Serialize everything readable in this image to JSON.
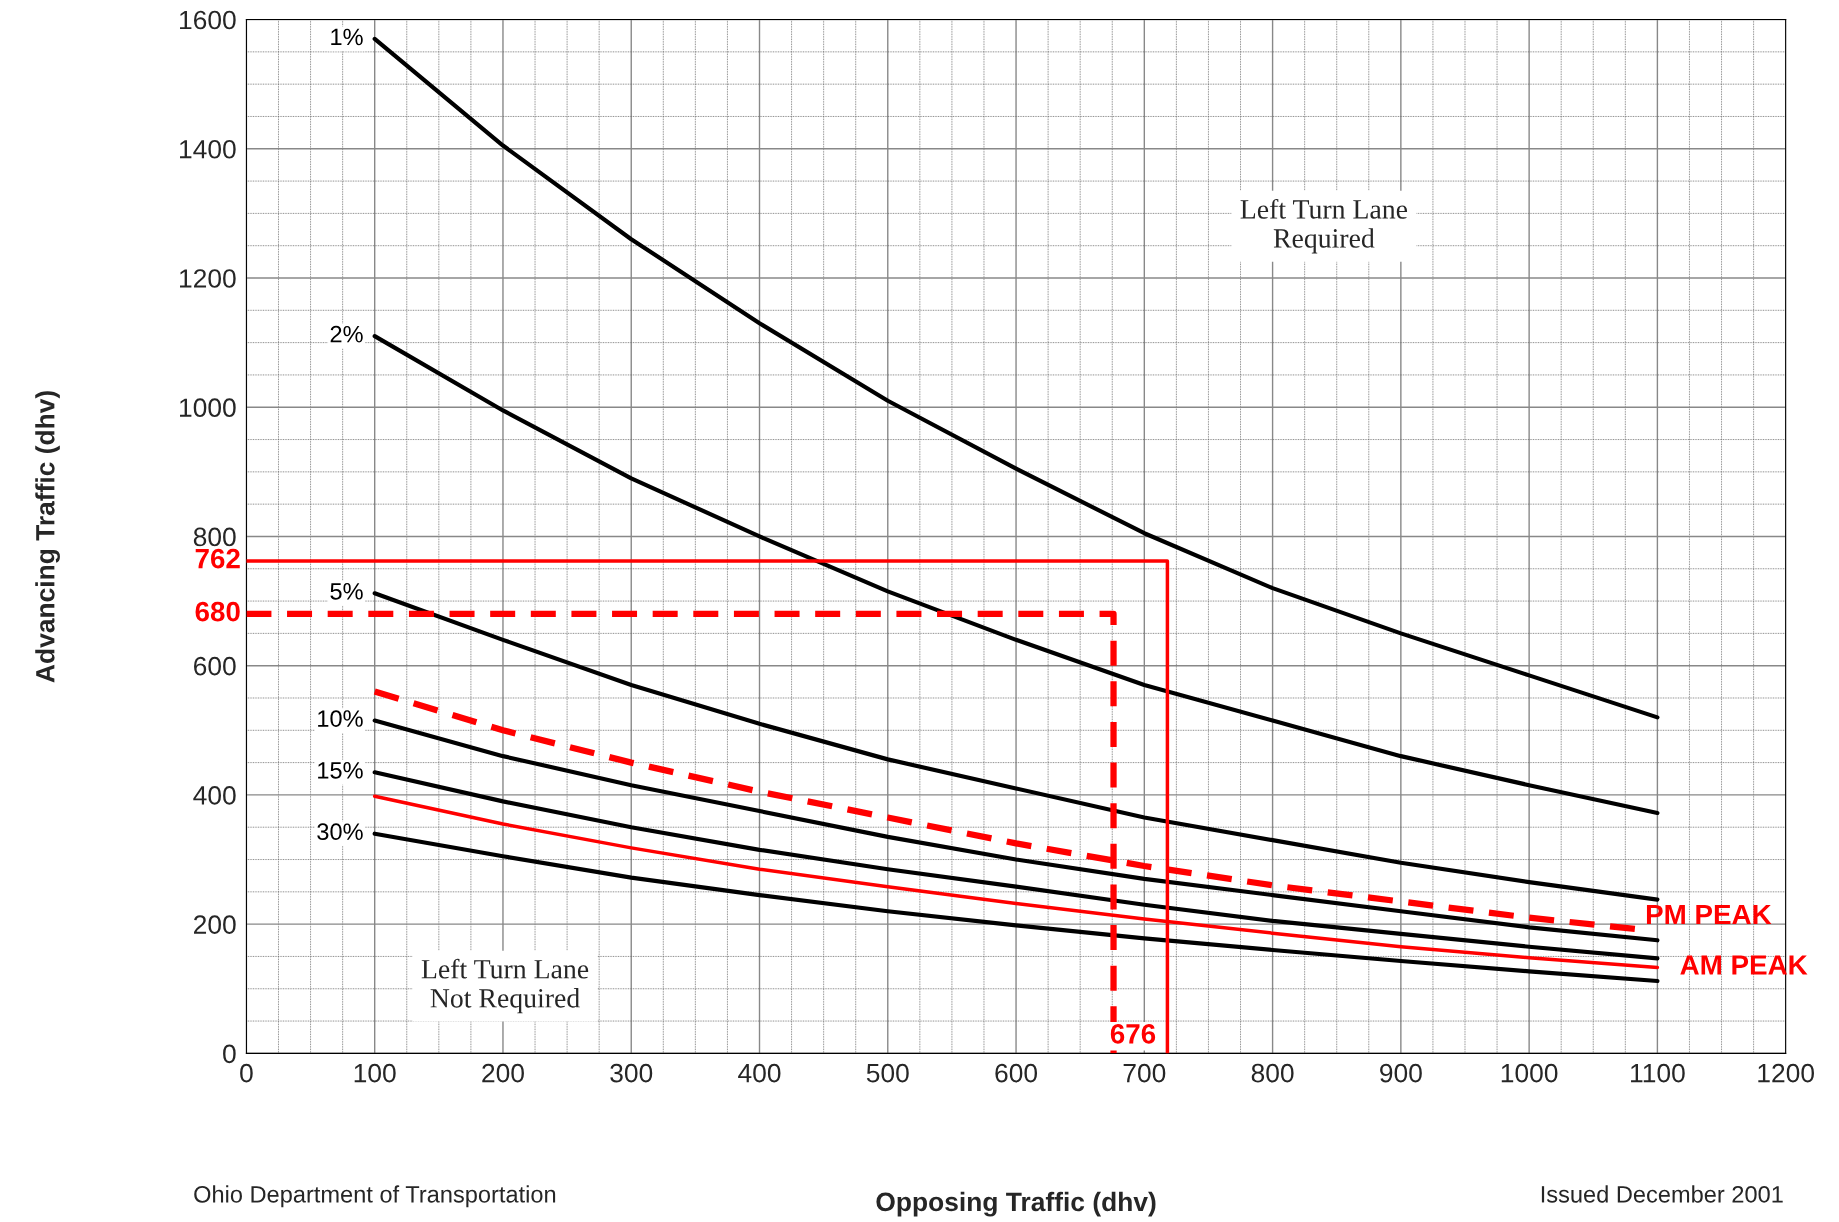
{
  "chart_data": {
    "type": "line",
    "xlabel": "Opposing Traffic (dhv)",
    "ylabel": "Advancing Traffic (dhv)",
    "x": [
      100,
      200,
      300,
      400,
      500,
      600,
      700,
      800,
      900,
      1000,
      1100
    ],
    "xlim": [
      0,
      1200
    ],
    "xticks": [
      0,
      100,
      200,
      300,
      400,
      500,
      600,
      700,
      800,
      900,
      1000,
      1100,
      1200
    ],
    "ylim": [
      0,
      1600
    ],
    "yticks": [
      0,
      200,
      400,
      600,
      800,
      1000,
      1200,
      1400,
      1600
    ],
    "grid": true,
    "marker": "none",
    "series": [
      {
        "name": "1%",
        "color": "#000000",
        "values": [
          1570,
          1405,
          1260,
          1130,
          1010,
          905,
          805,
          720,
          650,
          585,
          520
        ]
      },
      {
        "name": "2%",
        "color": "#000000",
        "values": [
          1110,
          995,
          890,
          800,
          715,
          640,
          570,
          515,
          460,
          415,
          372
        ]
      },
      {
        "name": "5%",
        "color": "#000000",
        "values": [
          712,
          640,
          570,
          510,
          455,
          410,
          365,
          330,
          295,
          265,
          238
        ]
      },
      {
        "name": "10%",
        "color": "#000000",
        "values": [
          515,
          460,
          415,
          375,
          335,
          300,
          270,
          245,
          220,
          195,
          175
        ]
      },
      {
        "name": "15%",
        "color": "#000000",
        "values": [
          435,
          390,
          350,
          315,
          285,
          258,
          230,
          205,
          185,
          165,
          147
        ]
      },
      {
        "name": "30%",
        "color": "#000000",
        "values": [
          340,
          305,
          272,
          245,
          220,
          198,
          178,
          160,
          143,
          127,
          112
        ]
      },
      {
        "name": "PM PEAK",
        "color": "#ff0000",
        "line_style": "dashed",
        "x": [
          100,
          200,
          300,
          400,
          500,
          600,
          700,
          800,
          900,
          1000,
          1085
        ],
        "values": [
          560,
          500,
          450,
          405,
          365,
          325,
          290,
          260,
          235,
          210,
          192
        ]
      },
      {
        "name": "AM PEAK",
        "color": "#ff0000",
        "values": [
          398,
          355,
          318,
          285,
          258,
          232,
          208,
          186,
          165,
          148,
          133
        ]
      },
      {
        "color": "#ff0000",
        "line_style": "dashed",
        "x": [
          0,
          676,
          676
        ],
        "values": [
          680,
          680,
          0
        ]
      },
      {
        "color": "#ff0000",
        "x": [
          0,
          718,
          718
        ],
        "values": [
          762,
          762,
          0
        ]
      }
    ],
    "annotations": [
      "Left Turn Lane\nRequired",
      "Left Turn Lane\nNot Required",
      "762",
      "680",
      "676",
      "Ohio Department of Transportation",
      "Issued December 2001"
    ]
  }
}
